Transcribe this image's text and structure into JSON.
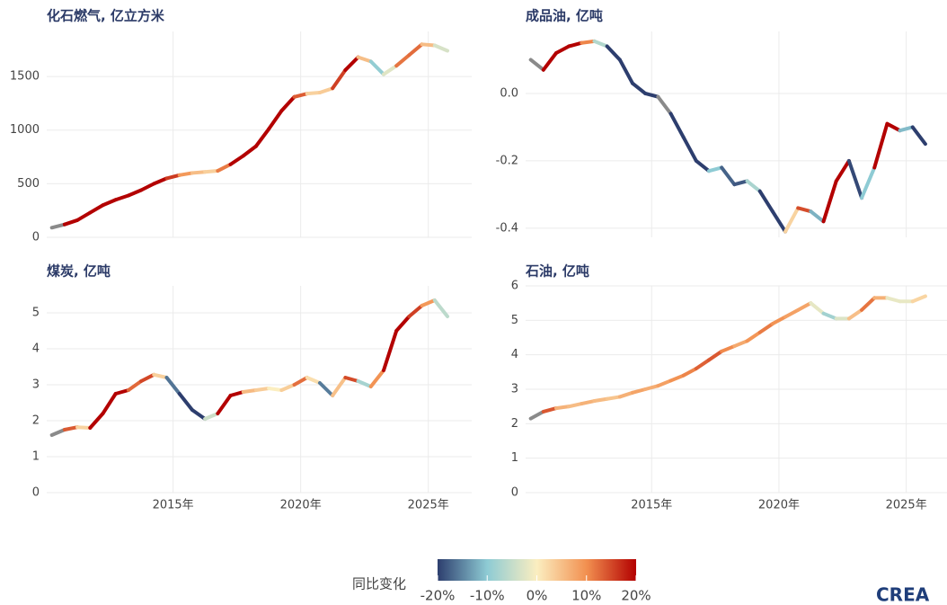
{
  "chart_data": [
    {
      "type": "line",
      "title": "化石燃气, 亿立方米",
      "x": [
        2010.25,
        2010.75,
        2011.25,
        2011.75,
        2012.25,
        2012.75,
        2013.25,
        2013.75,
        2014.25,
        2014.75,
        2015.25,
        2015.75,
        2016.25,
        2016.75,
        2017.25,
        2017.75,
        2018.25,
        2018.75,
        2019.25,
        2019.75,
        2020.25,
        2020.75,
        2021.25,
        2021.75,
        2022.25,
        2022.75,
        2023.25,
        2023.75,
        2024.25,
        2024.75,
        2025.25,
        2025.75
      ],
      "values": [
        90,
        120,
        160,
        230,
        300,
        350,
        390,
        440,
        500,
        550,
        580,
        600,
        610,
        620,
        680,
        760,
        850,
        1010,
        1180,
        1310,
        1340,
        1350,
        1390,
        1560,
        1680,
        1640,
        1520,
        1600,
        1700,
        1800,
        1790,
        1740
      ],
      "xlim": [
        2010.05,
        2026.7
      ],
      "ylim": [
        0,
        1920
      ],
      "yticks": [
        0,
        500,
        1000,
        1500
      ],
      "xgrid": [
        2015,
        2020,
        2025
      ]
    },
    {
      "type": "line",
      "title": "成品油, 亿吨",
      "x": [
        2010.25,
        2010.75,
        2011.25,
        2011.75,
        2012.25,
        2012.75,
        2013.25,
        2013.75,
        2014.25,
        2014.75,
        2015.25,
        2015.75,
        2016.25,
        2016.75,
        2017.25,
        2017.75,
        2018.25,
        2018.75,
        2019.25,
        2019.75,
        2020.25,
        2020.75,
        2021.25,
        2021.75,
        2022.25,
        2022.75,
        2023.25,
        2023.75,
        2024.25,
        2024.75,
        2025.25,
        2025.75
      ],
      "values": [
        0.1,
        0.07,
        0.12,
        0.14,
        0.15,
        0.155,
        0.14,
        0.1,
        0.03,
        0.0,
        -0.01,
        -0.06,
        -0.13,
        -0.2,
        -0.23,
        -0.22,
        -0.27,
        -0.26,
        -0.29,
        -0.35,
        -0.41,
        -0.34,
        -0.35,
        -0.38,
        -0.26,
        -0.2,
        -0.31,
        -0.22,
        -0.09,
        -0.11,
        -0.1,
        -0.15
      ],
      "xlim": [
        2010.05,
        2026.6
      ],
      "ylim": [
        -0.427,
        0.184
      ],
      "yticks": [
        {
          "value": 0,
          "label": "0.0"
        },
        -0.2,
        -0.4
      ],
      "xgrid": [
        2015,
        2020,
        2025
      ]
    },
    {
      "type": "line",
      "title": "煤炭, 亿吨",
      "x": [
        2010.25,
        2010.75,
        2011.25,
        2011.75,
        2012.25,
        2012.75,
        2013.25,
        2013.75,
        2014.25,
        2014.75,
        2015.25,
        2015.75,
        2016.25,
        2016.75,
        2017.25,
        2017.75,
        2018.25,
        2018.75,
        2019.25,
        2019.75,
        2020.25,
        2020.75,
        2021.25,
        2021.75,
        2022.25,
        2022.75,
        2023.25,
        2023.75,
        2024.25,
        2024.75,
        2025.25,
        2025.75
      ],
      "values": [
        1.6,
        1.75,
        1.82,
        1.8,
        2.2,
        2.75,
        2.85,
        3.1,
        3.28,
        3.2,
        2.75,
        2.3,
        2.05,
        2.2,
        2.7,
        2.8,
        2.85,
        2.9,
        2.85,
        3.0,
        3.2,
        3.05,
        2.7,
        3.2,
        3.1,
        2.95,
        3.4,
        4.5,
        4.9,
        5.2,
        5.35,
        4.9
      ],
      "xlim": [
        2010.05,
        2026.7
      ],
      "ylim": [
        0,
        5.75
      ],
      "yticks": [
        0,
        1,
        2,
        3,
        4,
        5
      ],
      "xticks": [
        {
          "value": 2015,
          "label": "2015年"
        },
        {
          "value": 2020,
          "label": "2020年"
        },
        {
          "value": 2025,
          "label": "2025年"
        }
      ]
    },
    {
      "type": "line",
      "title": "石油, 亿吨",
      "x": [
        2010.25,
        2010.75,
        2011.25,
        2011.75,
        2012.25,
        2012.75,
        2013.25,
        2013.75,
        2014.25,
        2014.75,
        2015.25,
        2015.75,
        2016.25,
        2016.75,
        2017.25,
        2017.75,
        2018.25,
        2018.75,
        2019.25,
        2019.75,
        2020.25,
        2020.75,
        2021.25,
        2021.75,
        2022.25,
        2022.75,
        2023.25,
        2023.75,
        2024.25,
        2024.75,
        2025.25,
        2025.75
      ],
      "values": [
        2.15,
        2.35,
        2.45,
        2.5,
        2.58,
        2.66,
        2.72,
        2.78,
        2.9,
        3.0,
        3.1,
        3.25,
        3.4,
        3.6,
        3.85,
        4.1,
        4.25,
        4.4,
        4.65,
        4.9,
        5.1,
        5.3,
        5.5,
        5.2,
        5.05,
        5.05,
        5.3,
        5.65,
        5.65,
        5.55,
        5.55,
        5.7
      ],
      "xlim": [
        2010.05,
        2026.6
      ],
      "ylim": [
        0,
        6
      ],
      "yticks": [
        0,
        1,
        2,
        3,
        4,
        5,
        6
      ],
      "xticks": [
        {
          "value": 2015,
          "label": "2015年"
        },
        {
          "value": 2020,
          "label": "2020年"
        },
        {
          "value": 2025,
          "label": "2025年"
        }
      ]
    }
  ],
  "colorbar": {
    "title": "同比变化",
    "lim": [
      -20,
      20
    ],
    "ticks": [
      {
        "value": -20,
        "label": "-20%"
      },
      {
        "value": -10,
        "label": "-10%"
      },
      {
        "value": 0,
        "label": "0%"
      },
      {
        "value": 10,
        "label": "10%"
      },
      {
        "value": 20,
        "label": "20%"
      }
    ],
    "colors": [
      "#2d3e6e",
      "#8ecbd4",
      "#fbeec0",
      "#f29050",
      "#b30000"
    ],
    "missing_color": "#8a8a8a"
  },
  "logo": "CREA"
}
